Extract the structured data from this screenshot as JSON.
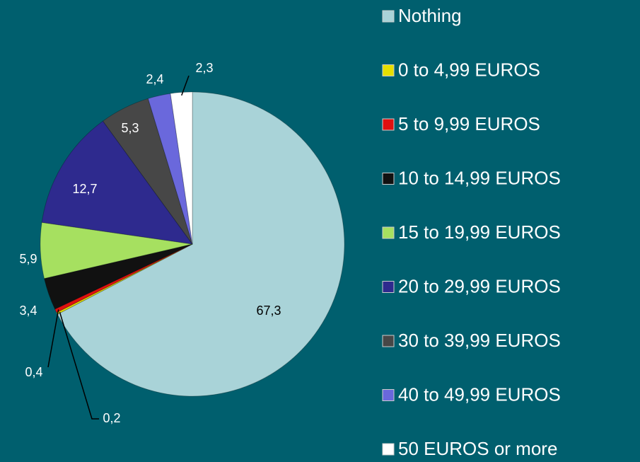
{
  "chart_data": {
    "type": "pie",
    "categories": [
      "Nothing",
      "0 to 4,99 EUROS",
      "5 to 9,99 EUROS",
      "10 to 14,99 EUROS",
      "15 to 19,99 EUROS",
      "20 to 29,99 EUROS",
      "30 to 39,99 EUROS",
      "40 to 49,99 EUROS",
      "50 EUROS or more"
    ],
    "values": [
      67.3,
      0.2,
      0.4,
      3.4,
      5.9,
      12.7,
      5.3,
      2.4,
      2.3
    ],
    "value_labels": [
      "67,3",
      "0,2",
      "0,4",
      "3,4",
      "5,9",
      "12,7",
      "5,3",
      "2,4",
      "2,3"
    ],
    "colors": [
      "#a9d3d8",
      "#e6df00",
      "#e01010",
      "#111111",
      "#a6e060",
      "#2e2a8e",
      "#474747",
      "#6a68dc",
      "#ffffff"
    ],
    "legend": "right"
  }
}
